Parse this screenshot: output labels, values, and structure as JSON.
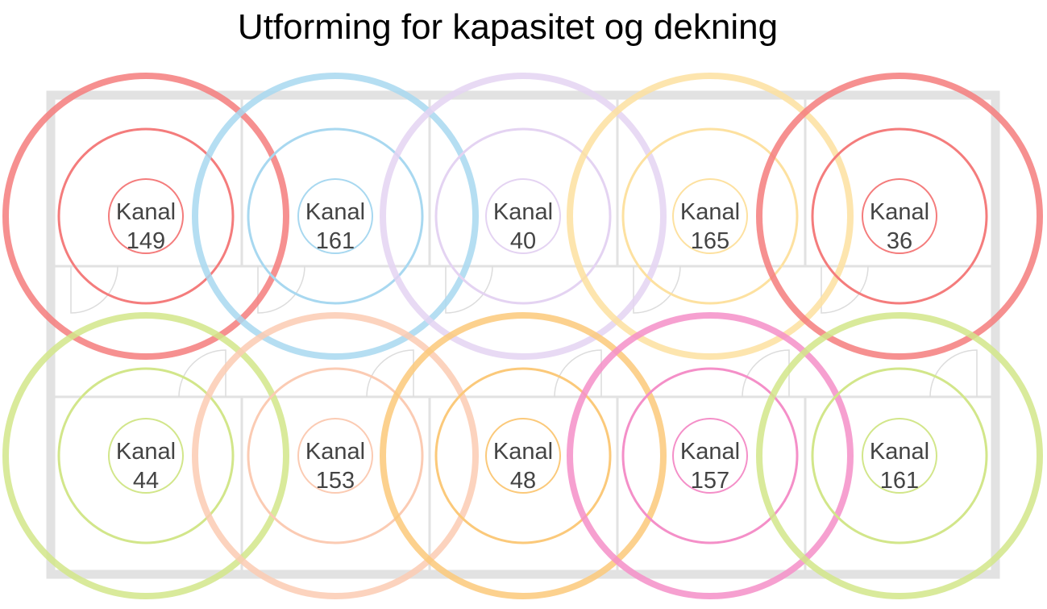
{
  "title": "Utforming for kapasitet og dekning",
  "nodes": [
    {
      "label": "Kanal",
      "channel": "149",
      "color": "#f47c7c"
    },
    {
      "label": "Kanal",
      "channel": "161",
      "color": "#a8d8f0"
    },
    {
      "label": "Kanal",
      "channel": "40",
      "color": "#e4d3f2"
    },
    {
      "label": "Kanal",
      "channel": "165",
      "color": "#fde1a0"
    },
    {
      "label": "Kanal",
      "channel": "36",
      "color": "#f47c7c"
    },
    {
      "label": "Kanal",
      "channel": "44",
      "color": "#d2e68a"
    },
    {
      "label": "Kanal",
      "channel": "153",
      "color": "#fbcbb3"
    },
    {
      "label": "Kanal",
      "channel": "48",
      "color": "#fbc97a"
    },
    {
      "label": "Kanal",
      "channel": "157",
      "color": "#f48fc8"
    },
    {
      "label": "Kanal",
      "channel": "161",
      "color": "#d2e68a"
    }
  ]
}
